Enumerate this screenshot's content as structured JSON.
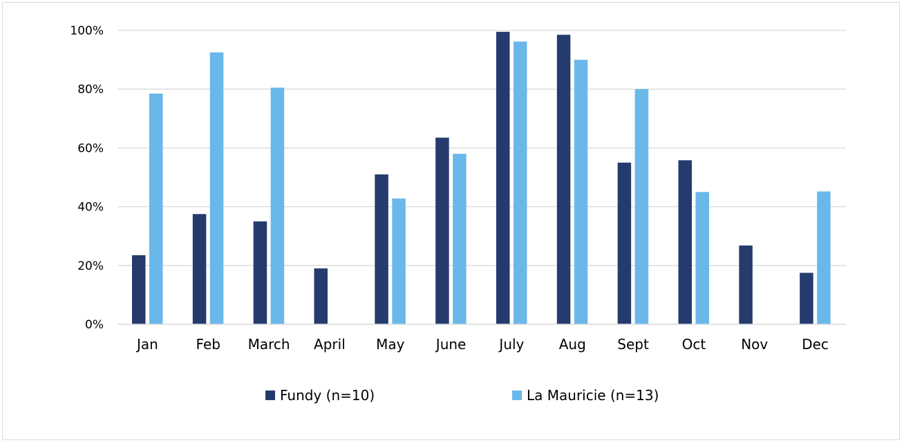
{
  "chart_data": {
    "type": "bar",
    "title": "",
    "xlabel": "",
    "ylabel": "",
    "categories": [
      "Jan",
      "Feb",
      "March",
      "April",
      "May",
      "June",
      "July",
      "Aug",
      "Sept",
      "Oct",
      "Nov",
      "Dec"
    ],
    "series": [
      {
        "name": "Fundy (n=10)",
        "color": "#253b6e",
        "values": [
          23.5,
          37.5,
          35,
          19,
          51,
          63.5,
          99.5,
          98.5,
          55,
          55.8,
          26.8,
          17.5
        ]
      },
      {
        "name": "La Mauricie (n=13)",
        "color": "#6ab8ea",
        "values": [
          78.5,
          92.5,
          80.5,
          0,
          42.8,
          58,
          96.2,
          90,
          80,
          45,
          0,
          45.2
        ]
      }
    ],
    "ylim": [
      0,
      100
    ],
    "yticks": [
      0,
      20,
      40,
      60,
      80,
      100
    ],
    "ytick_labels": [
      "0%",
      "20%",
      "40%",
      "60%",
      "80%",
      "100%"
    ],
    "grid": true,
    "gridline_color": "#d9d9d9",
    "legend_position": "bottom"
  }
}
